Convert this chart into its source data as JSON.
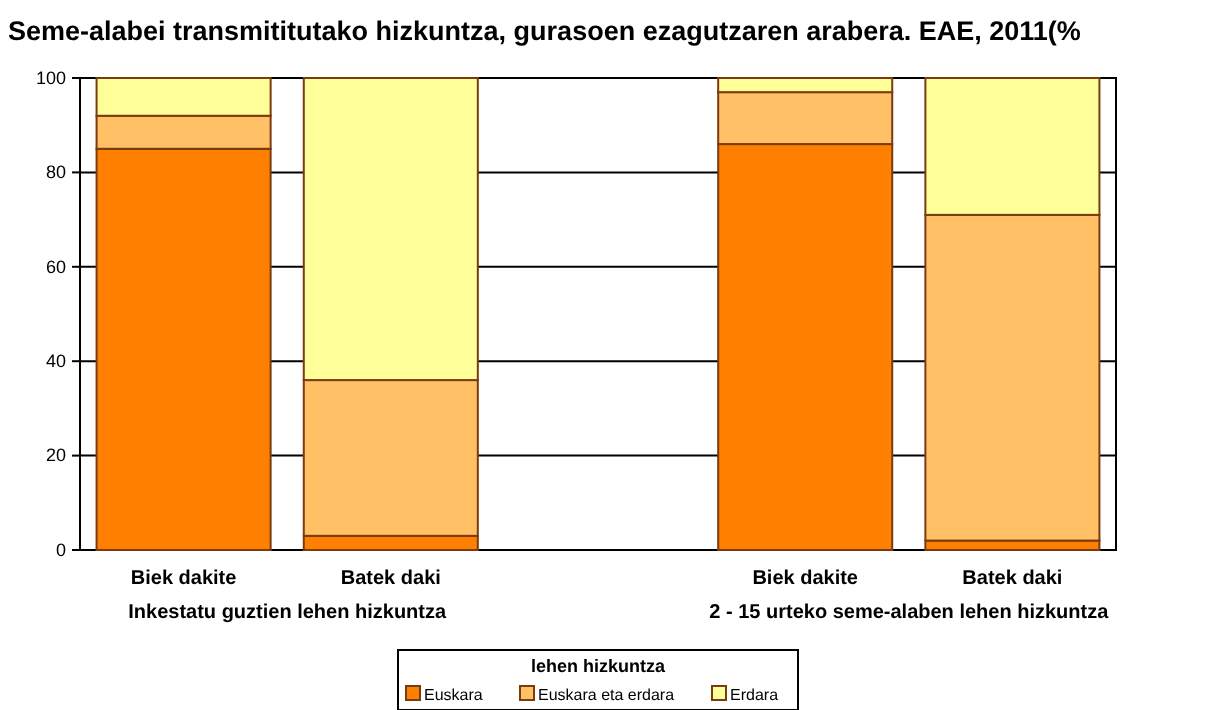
{
  "chart_data": {
    "type": "bar",
    "title": "Seme-alabei transmititutako hizkuntza, gurasoen ezagutzaren arabera. EAE, 2011(%",
    "categories": [
      "Biek dakite",
      "Batek daki",
      null,
      "Biek dakite",
      "Batek daki"
    ],
    "stacked": true,
    "series": [
      {
        "name": "Euskara",
        "color": "#ff8000",
        "values": [
          85,
          3,
          null,
          86,
          2
        ]
      },
      {
        "name": "Euskara eta erdara",
        "color": "#ffc066",
        "values": [
          7,
          33,
          null,
          11,
          69
        ]
      },
      {
        "name": "Erdara",
        "color": "#ffff99",
        "values": [
          8,
          64,
          null,
          3,
          29
        ]
      }
    ],
    "ylim": [
      0,
      100
    ],
    "yticks": [
      0,
      20,
      40,
      60,
      80,
      100
    ],
    "grid": "y",
    "legend": "bottom",
    "legend_title": "lehen hizkuntza",
    "annotations": [
      "Inkestatu guztien lehen hizkuntza",
      "2 - 15 urteko seme-alaben lehen hizkuntza"
    ]
  }
}
